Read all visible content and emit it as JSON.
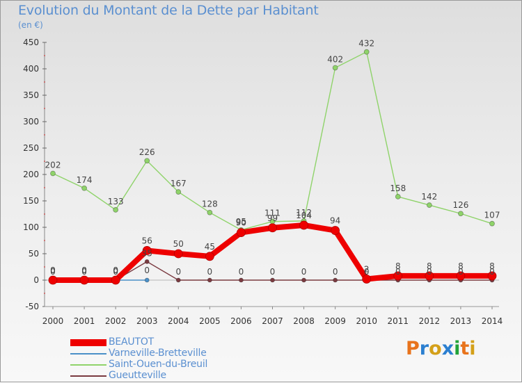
{
  "title": "Evolution du Montant de la Dette par Habitant",
  "subtitle": "(en €)",
  "logo": {
    "text": "Proxiti",
    "colors": [
      "#e8731c",
      "#2b7fd0",
      "#d4a019",
      "#2b7fd0",
      "#22a33a",
      "#e8731c",
      "#d4a019"
    ]
  },
  "chart_data": {
    "type": "line",
    "title": "Evolution du Montant de la Dette par Habitant",
    "ylabel": "(en €)",
    "xlabel": "",
    "x": [
      2000,
      2001,
      2002,
      2003,
      2004,
      2005,
      2006,
      2007,
      2008,
      2009,
      2010,
      2011,
      2012,
      2013,
      2014
    ],
    "ylim": [
      -50,
      450
    ],
    "yticks": [
      -50,
      0,
      50,
      100,
      150,
      200,
      250,
      300,
      350,
      400,
      450
    ],
    "legend_position": "bottom-left",
    "series": [
      {
        "name": "BEAUTOT",
        "color": "#ee0000",
        "values": [
          0,
          0,
          0,
          56,
          50,
          45,
          90,
          99,
          104,
          94,
          2,
          8,
          8,
          8,
          8
        ]
      },
      {
        "name": "Varneville-Bretteville",
        "color": "#4a90c8",
        "values": [
          0,
          0,
          0,
          0,
          null,
          null,
          null,
          null,
          null,
          null,
          null,
          null,
          null,
          null,
          null
        ]
      },
      {
        "name": "Saint-Ouen-du-Breuil",
        "color": "#8fd36a",
        "values": [
          202,
          174,
          133,
          226,
          167,
          128,
          95,
          111,
          112,
          402,
          432,
          158,
          142,
          126,
          107
        ]
      },
      {
        "name": "Gueutteville",
        "color": "#7a3a40",
        "values": [
          0,
          0,
          0,
          35,
          0,
          0,
          0,
          0,
          0,
          0,
          0,
          0,
          0,
          0,
          0
        ]
      }
    ],
    "annotations": [
      {
        "series": 0,
        "labels": [
          "0",
          "0",
          "0",
          "56",
          "50",
          "45",
          "90",
          "99",
          "104",
          "94",
          "2",
          "8",
          "8",
          "8",
          "8"
        ]
      },
      {
        "series": 1,
        "labels": [
          "0",
          "0",
          "0",
          "0",
          null,
          null,
          null,
          null,
          null,
          null,
          null,
          null,
          null,
          null,
          null
        ]
      },
      {
        "series": 2,
        "labels": [
          "202",
          "174",
          "133",
          "226",
          "167",
          "128",
          "95",
          "111",
          "112",
          "402",
          "432",
          "158",
          "142",
          "126",
          "107"
        ]
      },
      {
        "series": 3,
        "labels": [
          "0",
          "0",
          "0",
          "35",
          "0",
          "0",
          "0",
          "0",
          "0",
          "0",
          "0",
          "0",
          "0",
          "0",
          "0"
        ]
      }
    ]
  }
}
